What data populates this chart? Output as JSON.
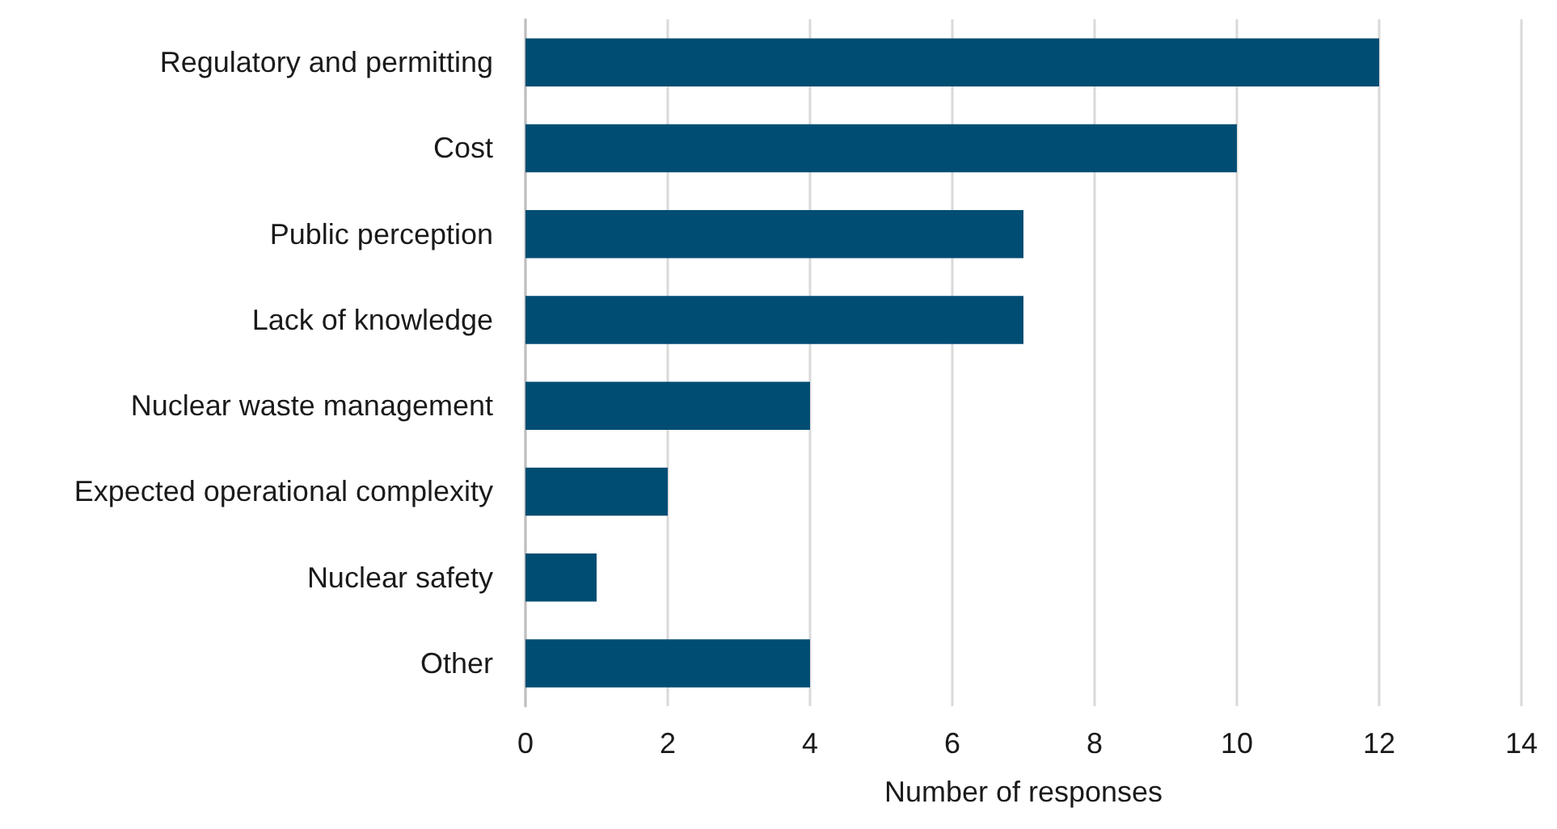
{
  "chart_data": {
    "type": "bar",
    "orientation": "horizontal",
    "xlabel": "Number of responses",
    "categories": [
      "Regulatory and permitting",
      "Cost",
      "Public perception",
      "Lack of knowledge",
      "Nuclear waste management",
      "Expected operational complexity",
      "Nuclear safety",
      "Other"
    ],
    "values": [
      12,
      10,
      7,
      7,
      4,
      2,
      1,
      4
    ],
    "color": "#004d73",
    "xlim": [
      0,
      14
    ],
    "xticks": [
      0,
      2,
      4,
      6,
      8,
      10,
      12,
      14
    ],
    "grid": "x"
  }
}
